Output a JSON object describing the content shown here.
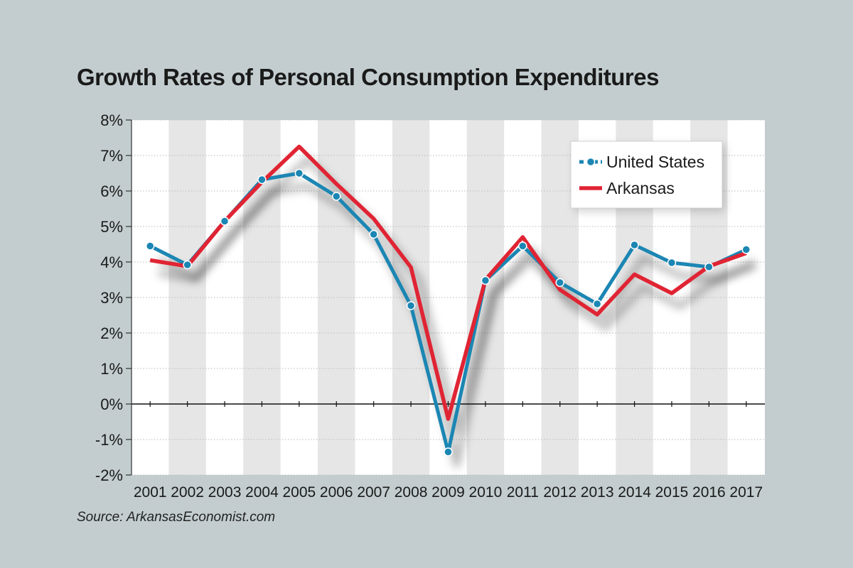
{
  "chart_data": {
    "type": "line",
    "title": "Growth Rates of Personal Consumption Expenditures",
    "source": "Source: ArkansasEconomist.com",
    "x": [
      "2001",
      "2002",
      "2003",
      "2004",
      "2005",
      "2006",
      "2007",
      "2008",
      "2009",
      "2010",
      "2011",
      "2012",
      "2013",
      "2014",
      "2015",
      "2016",
      "2017"
    ],
    "y_ticks": [
      "8%",
      "7%",
      "6%",
      "5%",
      "4%",
      "3%",
      "2%",
      "1%",
      "0%",
      "-1%",
      "-2%"
    ],
    "ylim": [
      -2,
      8
    ],
    "grid": true,
    "legend_position": "top-right",
    "series": [
      {
        "name": "United States",
        "color": "#1b86b3",
        "markers": true,
        "values": [
          4.45,
          3.92,
          5.15,
          6.32,
          6.5,
          5.85,
          4.78,
          2.77,
          -1.35,
          3.48,
          4.45,
          3.42,
          2.82,
          4.48,
          3.98,
          3.86,
          4.35
        ]
      },
      {
        "name": "Arkansas",
        "color": "#e02433",
        "markers": false,
        "values": [
          4.05,
          3.88,
          5.15,
          6.25,
          7.25,
          6.2,
          5.22,
          3.85,
          -0.42,
          3.5,
          4.7,
          3.22,
          2.52,
          3.65,
          3.12,
          3.88,
          4.25
        ]
      }
    ]
  }
}
